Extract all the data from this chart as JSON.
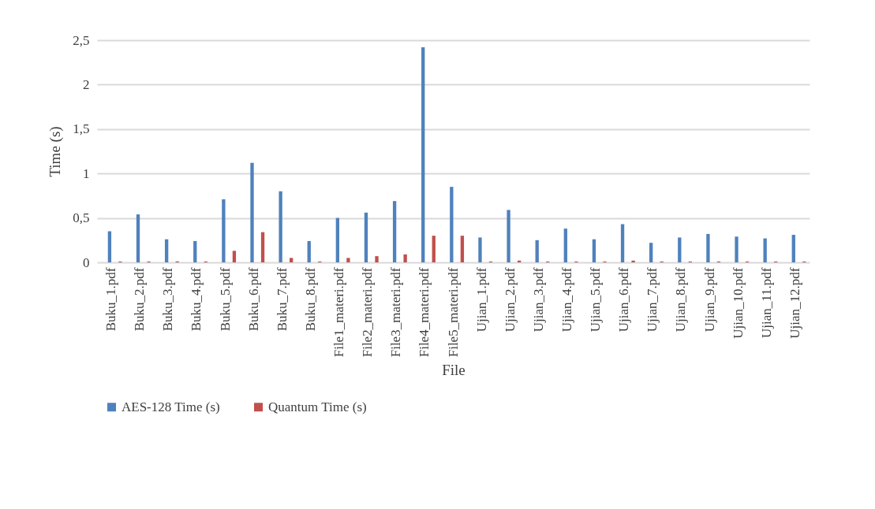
{
  "chart_data": {
    "type": "bar",
    "xlabel": "File",
    "ylabel": "Time (s)",
    "categories": [
      "Buku_1.pdf",
      "Buku_2.pdf",
      "Buku_3.pdf",
      "Buku_4.pdf",
      "Buku_5.pdf",
      "Buku_6.pdf",
      "Buku_7.pdf",
      "Buku_8.pdf",
      "File1_materi.pdf",
      "File2_materi.pdf",
      "File3_materi.pdf",
      "File4_materi.pdf",
      "File5_materi.pdf",
      "Ujian_1.pdf",
      "Ujian_2.pdf",
      "Ujian_3.pdf",
      "Ujian_4.pdf",
      "Ujian_5.pdf",
      "Ujian_6.pdf",
      "Ujian_7.pdf",
      "Ujian_8.pdf",
      "Ujian_9.pdf",
      "Ujian_10.pdf",
      "Ujian_11.pdf",
      "Ujian_12.pdf"
    ],
    "series": [
      {
        "name": "AES-128 Time (s)",
        "color": "#4f81bd",
        "values": [
          0.35,
          0.54,
          0.26,
          0.24,
          0.71,
          1.12,
          0.8,
          0.24,
          0.5,
          0.56,
          0.69,
          2.42,
          0.85,
          0.28,
          0.59,
          0.25,
          0.38,
          0.26,
          0.43,
          0.22,
          0.28,
          0.32,
          0.29,
          0.27,
          0.31
        ]
      },
      {
        "name": "Quantum Time (s)",
        "color": "#c0504d",
        "values": [
          0.01,
          0.01,
          0.01,
          0.01,
          0.13,
          0.34,
          0.05,
          0.01,
          0.05,
          0.07,
          0.09,
          0.3,
          0.3,
          0.01,
          0.02,
          0.01,
          0.01,
          0.01,
          0.02,
          0.01,
          0.01,
          0.01,
          0.01,
          0.01,
          0.01
        ]
      }
    ],
    "ylim": [
      0,
      2.5
    ],
    "yticks": [
      0,
      {
        "value": 0.5,
        "label": "0,5"
      },
      1,
      {
        "value": 1.5,
        "label": "1,5"
      },
      2,
      {
        "value": 2.5,
        "label": "2,5"
      }
    ],
    "grid": "y",
    "legend": "bottom"
  }
}
